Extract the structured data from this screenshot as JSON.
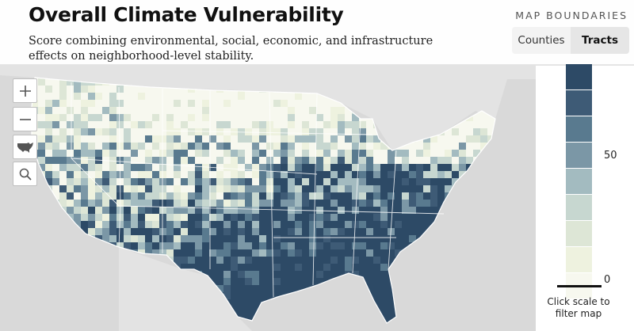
{
  "header": {
    "title": "Overall Climate Vulnerability",
    "subtitle": "Score combining environmental, social, economic, and infrastructure effects on neighborhood-level stability.",
    "boundaries_label": "MAP BOUNDARIES",
    "toggle": [
      {
        "label": "Counties",
        "selected": false
      },
      {
        "label": "Tracts",
        "selected": true
      }
    ]
  },
  "map_controls": {
    "zoom_in_icon": "plus-icon",
    "zoom_out_icon": "minus-icon",
    "reset_icon": "usa-icon",
    "search_icon": "search-icon"
  },
  "legend": {
    "tick_labels": [
      "50",
      "0"
    ],
    "note": "Click scale to filter map",
    "colors": [
      "#2d4a66",
      "#3e5b76",
      "#597a8f",
      "#7b97a6",
      "#a3bbc0",
      "#c7d7d0",
      "#dde6d6",
      "#eef2df",
      "#f7f8ef"
    ]
  },
  "map": {
    "land_dark": "#2a4861",
    "land_light": "#f2f4e8",
    "background": "#d9d9d9"
  }
}
